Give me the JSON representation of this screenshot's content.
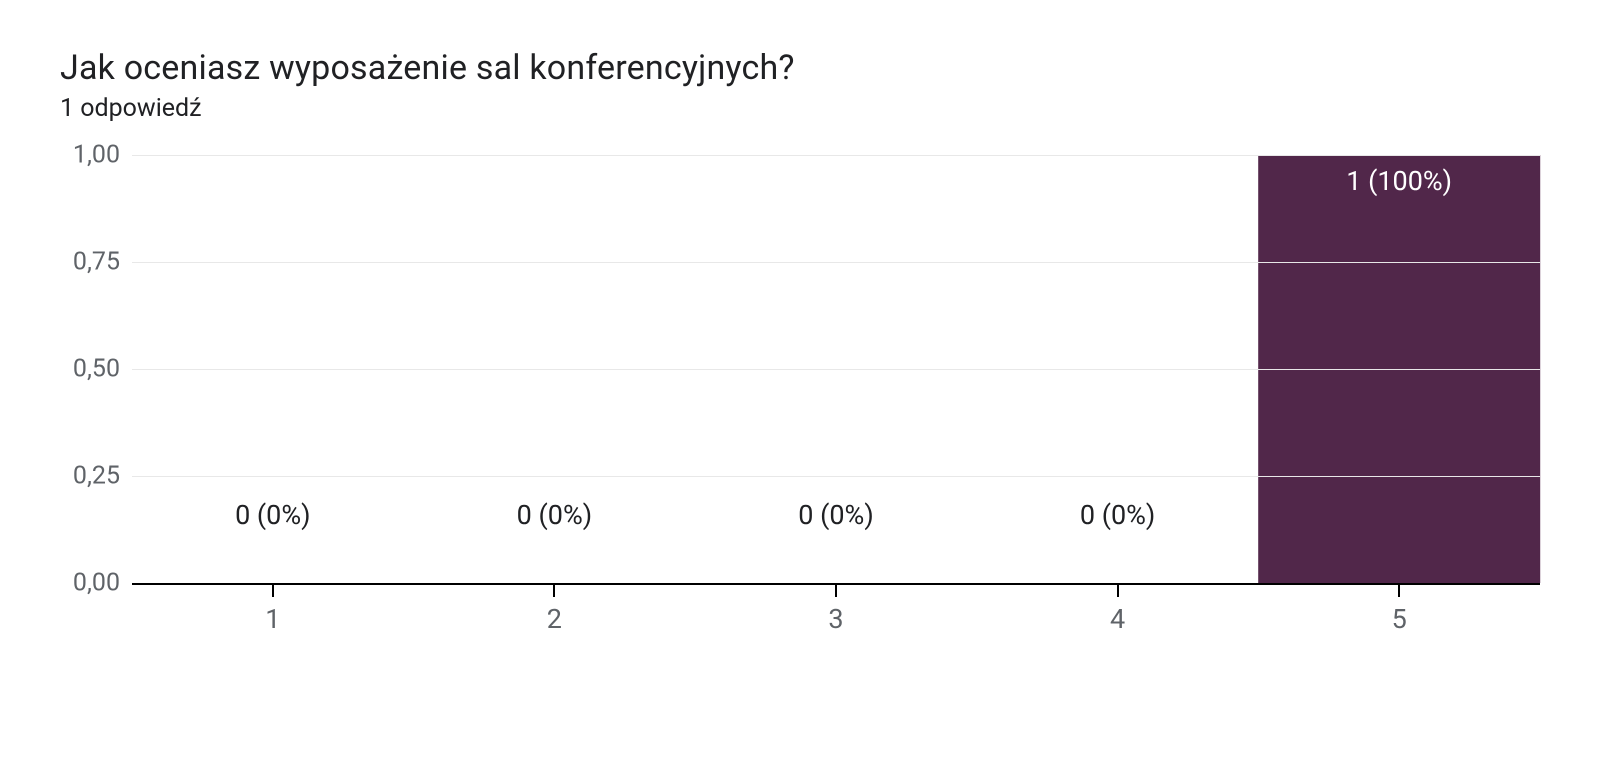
{
  "title": "Jak oceniasz wyposażenie sal konferencyjnych?",
  "subtitle": "1 odpowiedź",
  "chart": {
    "type": "bar",
    "background_color": "#ffffff",
    "grid_color": "#e8e8e8",
    "axis_color": "#000000",
    "tick_color": "#000000",
    "label_color": "#5f6368",
    "value_label_color_outside": "#202124",
    "value_label_color_inside": "#ffffff",
    "title_fontsize": 34,
    "subtitle_fontsize": 25,
    "axis_fontsize": 25,
    "value_fontsize": 27,
    "ylim": [
      0,
      1
    ],
    "ytick_step": 0.25,
    "yticks": [
      "0,00",
      "0,25",
      "0,50",
      "0,75",
      "1,00"
    ],
    "categories": [
      "1",
      "2",
      "3",
      "4",
      "5"
    ],
    "values": [
      0,
      0,
      0,
      0,
      1
    ],
    "value_labels": [
      "0 (0%)",
      "0 (0%)",
      "0 (0%)",
      "0 (0%)",
      "1 (100%)"
    ],
    "bar_colors": [
      "#51274a",
      "#51274a",
      "#51274a",
      "#51274a",
      "#51274a"
    ],
    "bar_width": 1.0
  }
}
